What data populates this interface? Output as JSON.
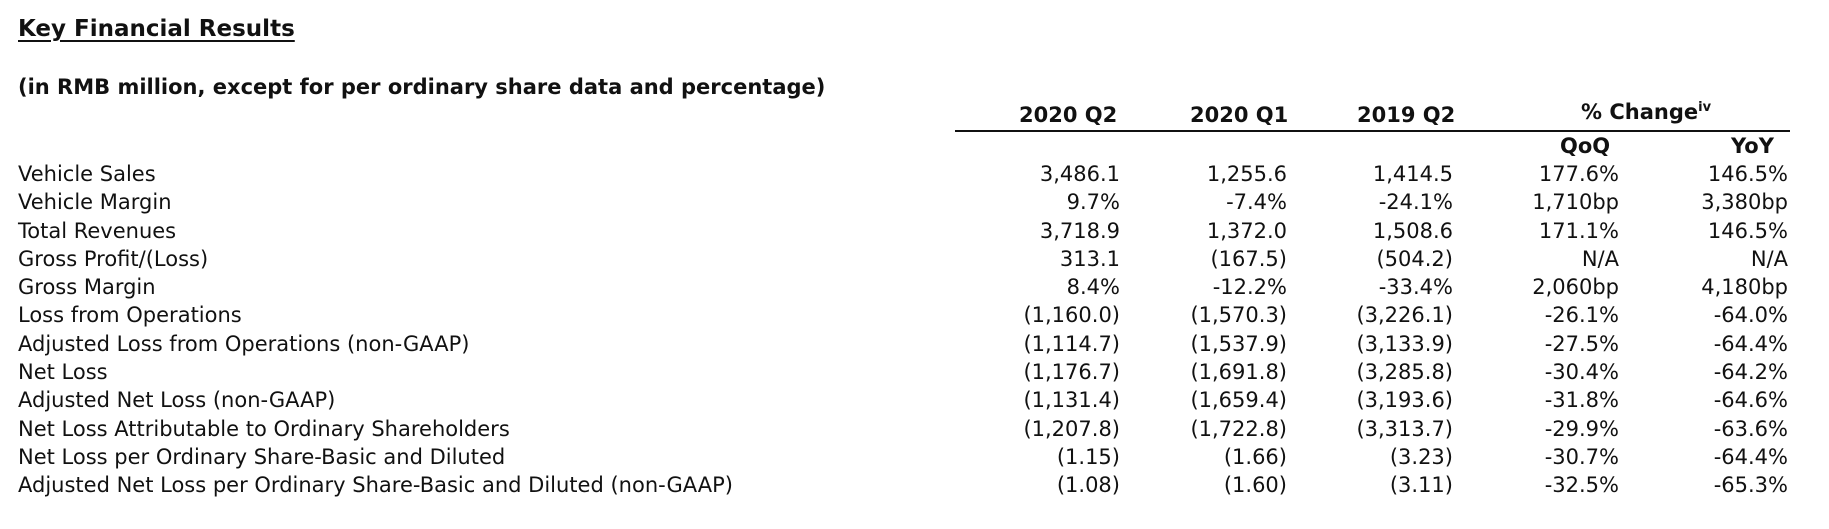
{
  "title": "Key Financial Results",
  "subtitle": "(in RMB million, except for per ordinary share data and percentage)",
  "columns": {
    "c1": "2020 Q2",
    "c2": "2020 Q1",
    "c3": "2019 Q2",
    "change": "% Change",
    "change_sup": "iv",
    "qoq": "QoQ",
    "yoy": "YoY"
  },
  "rows": [
    {
      "label": "Vehicle Sales",
      "c1": "3,486.1",
      "c2": "1,255.6",
      "c3": "1,414.5",
      "qoq": "177.6%",
      "yoy": "146.5%"
    },
    {
      "label": "Vehicle Margin",
      "c1": "9.7%",
      "c2": "-7.4%",
      "c3": "-24.1%",
      "qoq": "1,710bp",
      "yoy": "3,380bp"
    },
    {
      "label": "Total Revenues",
      "c1": "3,718.9",
      "c2": "1,372.0",
      "c3": "1,508.6",
      "qoq": "171.1%",
      "yoy": "146.5%"
    },
    {
      "label": "Gross Profit/(Loss)",
      "c1": "313.1",
      "c2": "(167.5)",
      "c3": "(504.2)",
      "qoq": "N/A",
      "yoy": "N/A"
    },
    {
      "label": "Gross Margin",
      "c1": "8.4%",
      "c2": "-12.2%",
      "c3": "-33.4%",
      "qoq": "2,060bp",
      "yoy": "4,180bp"
    },
    {
      "label": "Loss from Operations",
      "c1": "(1,160.0)",
      "c2": "(1,570.3)",
      "c3": "(3,226.1)",
      "qoq": "-26.1%",
      "yoy": "-64.0%"
    },
    {
      "label": "Adjusted Loss from Operations (non-GAAP)",
      "c1": "(1,114.7)",
      "c2": "(1,537.9)",
      "c3": "(3,133.9)",
      "qoq": "-27.5%",
      "yoy": "-64.4%"
    },
    {
      "label": "Net Loss",
      "c1": "(1,176.7)",
      "c2": "(1,691.8)",
      "c3": "(3,285.8)",
      "qoq": "-30.4%",
      "yoy": "-64.2%"
    },
    {
      "label": "Adjusted Net Loss (non-GAAP)",
      "c1": "(1,131.4)",
      "c2": "(1,659.4)",
      "c3": "(3,193.6)",
      "qoq": "-31.8%",
      "yoy": "-64.6%"
    },
    {
      "label": "Net Loss Attributable to Ordinary Shareholders",
      "c1": "(1,207.8)",
      "c2": "(1,722.8)",
      "c3": "(3,313.7)",
      "qoq": "-29.9%",
      "yoy": "-63.6%"
    },
    {
      "label": "Net Loss per Ordinary Share-Basic and Diluted",
      "c1": "(1.15)",
      "c2": "(1.66)",
      "c3": "(3.23)",
      "qoq": "-30.7%",
      "yoy": "-64.4%"
    },
    {
      "label": "Adjusted Net Loss per Ordinary Share-Basic and Diluted (non-GAAP)",
      "c1": "(1.08)",
      "c2": "(1.60)",
      "c3": "(3.11)",
      "qoq": "-32.5%",
      "yoy": "-65.3%"
    }
  ]
}
